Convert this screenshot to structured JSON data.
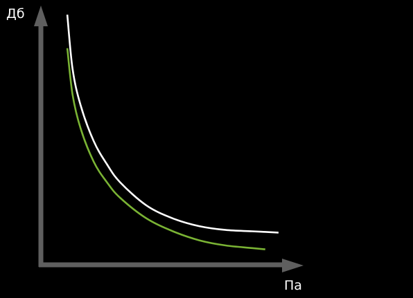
{
  "colors": {
    "background": "#000000",
    "axis": "#5f5f5f",
    "curve_upper": "#ffffff",
    "curve_lower": "#7ab334",
    "text": "#ffffff"
  },
  "chart_data": {
    "type": "line",
    "title": "",
    "xlabel": "Па",
    "ylabel": "Дб",
    "grid": false,
    "ticks": false,
    "x_range": [
      0,
      10
    ],
    "y_range": [
      0,
      10
    ],
    "series": [
      {
        "color": "#ffffff",
        "x": [
          1.0,
          1.2,
          1.5,
          2.0,
          2.5,
          3.0,
          4.0,
          5.0,
          6.0,
          7.0,
          8.0,
          9.0
        ],
        "y": [
          9.7,
          7.6,
          6.2,
          4.8,
          3.9,
          3.2,
          2.3,
          1.8,
          1.5,
          1.35,
          1.3,
          1.25
        ]
      },
      {
        "color": "#7ab334",
        "x": [
          1.0,
          1.2,
          1.5,
          2.0,
          2.5,
          3.0,
          4.0,
          5.0,
          6.0,
          7.0,
          8.0,
          8.5
        ],
        "y": [
          8.4,
          6.6,
          5.3,
          4.0,
          3.2,
          2.6,
          1.8,
          1.3,
          0.95,
          0.75,
          0.65,
          0.6
        ]
      }
    ]
  }
}
